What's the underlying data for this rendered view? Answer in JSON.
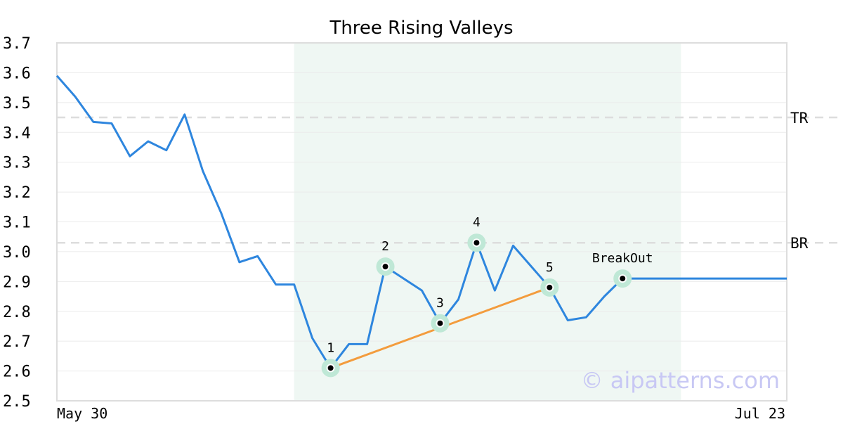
{
  "chart_data": {
    "type": "line",
    "title": "Three Rising Valleys",
    "xlabel": "",
    "ylabel": "",
    "ylim": [
      2.5,
      3.7
    ],
    "y_ticks": [
      "2.5",
      "2.6",
      "2.7",
      "2.8",
      "2.9",
      "3.0",
      "3.1",
      "3.2",
      "3.3",
      "3.4",
      "3.5",
      "3.6",
      "3.7"
    ],
    "x_tick_labels": [
      "May 30",
      "Jul 23"
    ],
    "grid": true,
    "series": [
      {
        "color": "#2e86de",
        "values": [
          3.59,
          3.52,
          3.435,
          3.43,
          3.32,
          3.37,
          3.34,
          3.46,
          3.27,
          3.13,
          2.965,
          2.985,
          2.89,
          2.89,
          2.71,
          2.61,
          2.69,
          2.69,
          2.95,
          2.91,
          2.87,
          2.76,
          2.84,
          3.03,
          2.87,
          3.02,
          2.95,
          2.88,
          2.77,
          2.78,
          2.85,
          2.91,
          2.91,
          2.91,
          2.91,
          2.91,
          2.91,
          2.91,
          2.91,
          2.91,
          2.91
        ]
      }
    ],
    "pattern_region": {
      "start_index": 13,
      "end_index": 34.2
    },
    "reference_lines": [
      {
        "label": "TR",
        "value": 3.45
      },
      {
        "label": "BR",
        "value": 3.03
      }
    ],
    "pattern_points": [
      {
        "label": "1",
        "index": 15,
        "value": 2.61
      },
      {
        "label": "2",
        "index": 18,
        "value": 2.95
      },
      {
        "label": "3",
        "index": 21,
        "value": 2.76
      },
      {
        "label": "4",
        "index": 23,
        "value": 3.03
      },
      {
        "label": "5",
        "index": 27,
        "value": 2.88
      },
      {
        "label": "BreakOut",
        "index": 31,
        "value": 2.91
      }
    ],
    "trendline": {
      "color": "#f39c3d",
      "from_point": "1",
      "to_point": "5"
    },
    "watermark": "© aipatterns.com",
    "colors": {
      "region": "#eff7f3",
      "marker_halo": "#bfe8d6",
      "reference": "#dddddd",
      "grid": "#ebebeb",
      "frame": "#dddddd"
    }
  }
}
